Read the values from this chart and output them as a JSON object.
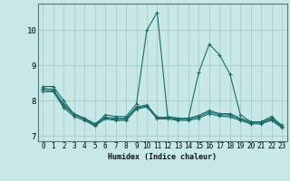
{
  "xlabel": "Humidex (Indice chaleur)",
  "background_color": "#c8e8e8",
  "grid_color": "#a8cccc",
  "line_color": "#1a6b6b",
  "x_hours": [
    0,
    1,
    2,
    3,
    4,
    5,
    6,
    7,
    8,
    9,
    10,
    11,
    12,
    13,
    14,
    15,
    16,
    17,
    18,
    19,
    20,
    21,
    22,
    23
  ],
  "series": [
    [
      8.4,
      8.4,
      8.0,
      7.6,
      7.5,
      7.3,
      7.6,
      7.55,
      7.55,
      7.9,
      10.0,
      10.5,
      7.55,
      7.5,
      7.5,
      8.8,
      9.6,
      9.3,
      8.75,
      7.6,
      7.4,
      7.4,
      7.55,
      7.3
    ],
    [
      8.35,
      8.32,
      7.9,
      7.63,
      7.5,
      7.35,
      7.53,
      7.5,
      7.5,
      7.82,
      7.88,
      7.53,
      7.53,
      7.5,
      7.5,
      7.58,
      7.72,
      7.63,
      7.63,
      7.5,
      7.4,
      7.4,
      7.5,
      7.27
    ],
    [
      8.3,
      8.28,
      7.85,
      7.6,
      7.47,
      7.32,
      7.51,
      7.47,
      7.47,
      7.79,
      7.85,
      7.51,
      7.51,
      7.47,
      7.47,
      7.54,
      7.68,
      7.6,
      7.59,
      7.47,
      7.37,
      7.37,
      7.47,
      7.25
    ],
    [
      8.25,
      8.25,
      7.8,
      7.55,
      7.44,
      7.28,
      7.48,
      7.44,
      7.44,
      7.76,
      7.82,
      7.48,
      7.48,
      7.44,
      7.44,
      7.5,
      7.63,
      7.56,
      7.54,
      7.44,
      7.34,
      7.34,
      7.44,
      7.23
    ]
  ],
  "ylim": [
    6.85,
    10.75
  ],
  "yticks": [
    7,
    8,
    9,
    10
  ],
  "xlim": [
    -0.5,
    23.5
  ],
  "xticks": [
    0,
    1,
    2,
    3,
    4,
    5,
    6,
    7,
    8,
    9,
    10,
    11,
    12,
    13,
    14,
    15,
    16,
    17,
    18,
    19,
    20,
    21,
    22,
    23
  ]
}
